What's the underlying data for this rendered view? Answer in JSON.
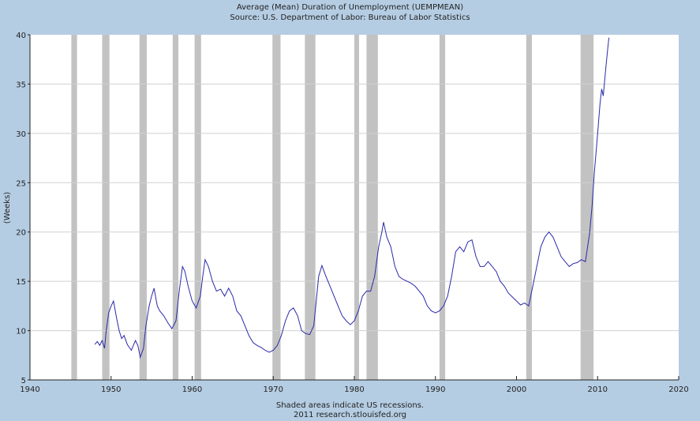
{
  "chart_data": {
    "type": "line",
    "title": "Average (Mean) Duration of Unemployment (UEMPMEAN)",
    "subtitle": "Source: U.S. Department of Labor: Bureau of Labor Statistics",
    "xlabel": "",
    "ylabel": "(Weeks)",
    "footnote": "Shaded areas indicate US recessions.",
    "credit": "2011 research.stlouisfed.org",
    "xlim": [
      1940,
      2020
    ],
    "ylim": [
      5,
      40
    ],
    "xticks": [
      1940,
      1950,
      1960,
      1970,
      1980,
      1990,
      2000,
      2010,
      2020
    ],
    "yticks": [
      5,
      10,
      15,
      20,
      25,
      30,
      35,
      40
    ],
    "grid": "horizontal",
    "colors": {
      "line": "#2a2aa8",
      "recession": "#c2c2c2",
      "background": "#b5cde3",
      "plot": "#ffffff",
      "grid": "#d0d0d0"
    },
    "recessions": [
      [
        1945.1,
        1945.8
      ],
      [
        1948.9,
        1949.8
      ],
      [
        1953.5,
        1954.4
      ],
      [
        1957.6,
        1958.3
      ],
      [
        1960.3,
        1961.1
      ],
      [
        1969.9,
        1970.9
      ],
      [
        1973.9,
        1975.2
      ],
      [
        1980.0,
        1980.5
      ],
      [
        1981.5,
        1982.9
      ],
      [
        1990.5,
        1991.2
      ],
      [
        2001.2,
        2001.9
      ],
      [
        2007.9,
        2009.5
      ]
    ],
    "series": [
      {
        "name": "UEMPMEAN",
        "points": [
          [
            1948.0,
            8.6
          ],
          [
            1948.3,
            8.9
          ],
          [
            1948.6,
            8.5
          ],
          [
            1948.9,
            9.0
          ],
          [
            1949.2,
            8.2
          ],
          [
            1949.4,
            10.0
          ],
          [
            1949.7,
            11.8
          ],
          [
            1950.0,
            12.5
          ],
          [
            1950.3,
            13.0
          ],
          [
            1950.7,
            11.2
          ],
          [
            1951.0,
            10.0
          ],
          [
            1951.3,
            9.2
          ],
          [
            1951.6,
            9.5
          ],
          [
            1952.0,
            8.6
          ],
          [
            1952.5,
            8.0
          ],
          [
            1953.0,
            9.0
          ],
          [
            1953.3,
            8.5
          ],
          [
            1953.6,
            7.3
          ],
          [
            1954.0,
            8.2
          ],
          [
            1954.3,
            10.5
          ],
          [
            1954.7,
            12.5
          ],
          [
            1955.0,
            13.5
          ],
          [
            1955.3,
            14.3
          ],
          [
            1955.7,
            12.5
          ],
          [
            1956.0,
            12.0
          ],
          [
            1956.5,
            11.5
          ],
          [
            1957.0,
            10.8
          ],
          [
            1957.5,
            10.2
          ],
          [
            1958.0,
            11.0
          ],
          [
            1958.4,
            14.0
          ],
          [
            1958.8,
            16.5
          ],
          [
            1959.1,
            16.0
          ],
          [
            1959.5,
            14.5
          ],
          [
            1960.0,
            13.0
          ],
          [
            1960.5,
            12.3
          ],
          [
            1961.0,
            13.5
          ],
          [
            1961.3,
            15.5
          ],
          [
            1961.6,
            17.2
          ],
          [
            1962.0,
            16.5
          ],
          [
            1962.5,
            15.0
          ],
          [
            1963.0,
            14.0
          ],
          [
            1963.5,
            14.2
          ],
          [
            1964.0,
            13.5
          ],
          [
            1964.5,
            14.3
          ],
          [
            1965.0,
            13.5
          ],
          [
            1965.5,
            12.0
          ],
          [
            1966.0,
            11.5
          ],
          [
            1966.5,
            10.5
          ],
          [
            1967.0,
            9.5
          ],
          [
            1967.5,
            8.8
          ],
          [
            1968.0,
            8.5
          ],
          [
            1968.5,
            8.3
          ],
          [
            1969.0,
            8.0
          ],
          [
            1969.5,
            7.8
          ],
          [
            1970.0,
            8.0
          ],
          [
            1970.5,
            8.5
          ],
          [
            1971.0,
            9.5
          ],
          [
            1971.5,
            11.0
          ],
          [
            1972.0,
            12.0
          ],
          [
            1972.5,
            12.3
          ],
          [
            1973.0,
            11.5
          ],
          [
            1973.5,
            10.0
          ],
          [
            1974.0,
            9.7
          ],
          [
            1974.5,
            9.6
          ],
          [
            1975.0,
            10.5
          ],
          [
            1975.3,
            13.0
          ],
          [
            1975.6,
            15.5
          ],
          [
            1976.0,
            16.6
          ],
          [
            1976.5,
            15.5
          ],
          [
            1977.0,
            14.5
          ],
          [
            1977.5,
            13.5
          ],
          [
            1978.0,
            12.5
          ],
          [
            1978.5,
            11.5
          ],
          [
            1979.0,
            11.0
          ],
          [
            1979.5,
            10.6
          ],
          [
            1980.0,
            11.0
          ],
          [
            1980.5,
            12.0
          ],
          [
            1981.0,
            13.5
          ],
          [
            1981.5,
            14.0
          ],
          [
            1982.0,
            14.0
          ],
          [
            1982.5,
            15.5
          ],
          [
            1983.0,
            18.5
          ],
          [
            1983.4,
            20.0
          ],
          [
            1983.6,
            21.0
          ],
          [
            1984.0,
            19.5
          ],
          [
            1984.5,
            18.5
          ],
          [
            1985.0,
            16.5
          ],
          [
            1985.5,
            15.5
          ],
          [
            1986.0,
            15.2
          ],
          [
            1986.5,
            15.0
          ],
          [
            1987.0,
            14.8
          ],
          [
            1987.5,
            14.5
          ],
          [
            1988.0,
            14.0
          ],
          [
            1988.5,
            13.5
          ],
          [
            1989.0,
            12.5
          ],
          [
            1989.5,
            12.0
          ],
          [
            1990.0,
            11.8
          ],
          [
            1990.5,
            12.0
          ],
          [
            1991.0,
            12.5
          ],
          [
            1991.5,
            13.5
          ],
          [
            1992.0,
            15.5
          ],
          [
            1992.5,
            18.0
          ],
          [
            1993.0,
            18.5
          ],
          [
            1993.5,
            18.0
          ],
          [
            1994.0,
            19.0
          ],
          [
            1994.5,
            19.2
          ],
          [
            1995.0,
            17.5
          ],
          [
            1995.5,
            16.5
          ],
          [
            1996.0,
            16.5
          ],
          [
            1996.5,
            17.0
          ],
          [
            1997.0,
            16.5
          ],
          [
            1997.5,
            16.0
          ],
          [
            1998.0,
            15.0
          ],
          [
            1998.5,
            14.5
          ],
          [
            1999.0,
            13.8
          ],
          [
            1999.5,
            13.4
          ],
          [
            2000.0,
            13.0
          ],
          [
            2000.5,
            12.6
          ],
          [
            2001.0,
            12.8
          ],
          [
            2001.5,
            12.5
          ],
          [
            2002.0,
            14.5
          ],
          [
            2002.5,
            16.5
          ],
          [
            2003.0,
            18.5
          ],
          [
            2003.5,
            19.5
          ],
          [
            2004.0,
            20.0
          ],
          [
            2004.5,
            19.5
          ],
          [
            2005.0,
            18.5
          ],
          [
            2005.5,
            17.5
          ],
          [
            2006.0,
            17.0
          ],
          [
            2006.5,
            16.5
          ],
          [
            2007.0,
            16.8
          ],
          [
            2007.5,
            16.9
          ],
          [
            2008.0,
            17.2
          ],
          [
            2008.5,
            17.0
          ],
          [
            2009.0,
            19.8
          ],
          [
            2009.3,
            22.5
          ],
          [
            2009.6,
            26.0
          ],
          [
            2010.0,
            30.0
          ],
          [
            2010.3,
            33.0
          ],
          [
            2010.5,
            34.5
          ],
          [
            2010.7,
            33.8
          ],
          [
            2011.0,
            36.5
          ],
          [
            2011.3,
            39.0
          ],
          [
            2011.4,
            39.7
          ]
        ]
      }
    ]
  }
}
